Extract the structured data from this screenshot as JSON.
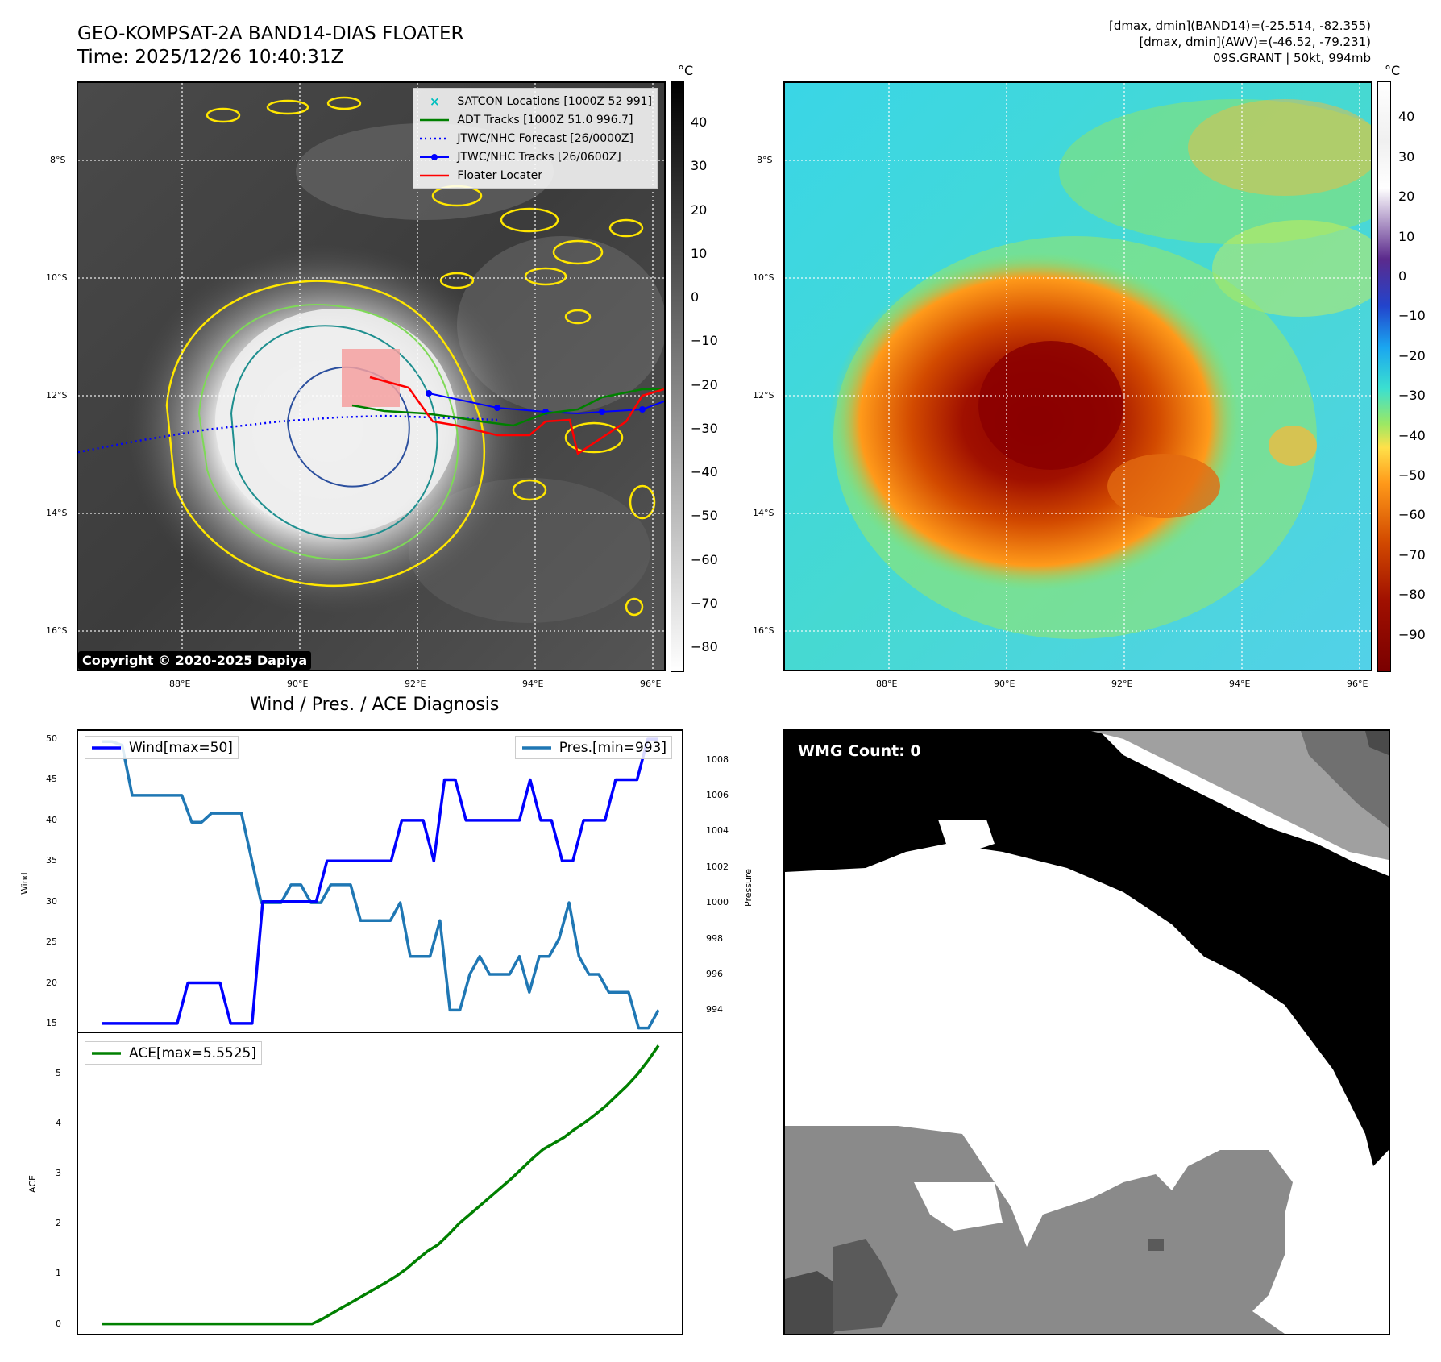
{
  "header": {
    "title_line1": "GEO-KOMPSAT-2A BAND14-DIAS FLOATER",
    "title_line2": "Time: 2025/12/26 10:40:31Z",
    "info_line1": "[dmax, dmin](BAND14)=(-25.514, -82.355)",
    "info_line2": "[dmax, dmin](AWV)=(-46.52, -79.231)",
    "info_line3": "09S.GRANT | 50kt, 994mb"
  },
  "map": {
    "lat_labels": [
      "8°S",
      "10°S",
      "12°S",
      "14°S",
      "16°S"
    ],
    "lon_labels": [
      "88°E",
      "90°E",
      "92°E",
      "94°E",
      "96°E"
    ],
    "copyright": "Copyright © 2020-2025 Dapiya",
    "legend": [
      {
        "label": "SATCON Locations [1000Z 52 991]",
        "color": "#00bfbf",
        "style": "x"
      },
      {
        "label": "ADT Tracks [1000Z 51.0 996.7]",
        "color": "#008000",
        "style": "line"
      },
      {
        "label": "JTWC/NHC Forecast [26/0000Z]",
        "color": "#0000ff",
        "style": "dotted"
      },
      {
        "label": "JTWC/NHC Tracks [26/0600Z]",
        "color": "#0000ff",
        "style": "line-dot"
      },
      {
        "label": "Floater Locater",
        "color": "#ff0000",
        "style": "line"
      }
    ]
  },
  "colorbar_left": {
    "unit": "°C",
    "ticks": [
      "40",
      "30",
      "20",
      "10",
      "0",
      "−10",
      "−20",
      "−30",
      "−40",
      "−50",
      "−60",
      "−70",
      "−80"
    ]
  },
  "colorbar_right": {
    "unit": "°C",
    "ticks": [
      "40",
      "30",
      "20",
      "10",
      "0",
      "−10",
      "−20",
      "−30",
      "−40",
      "−50",
      "−60",
      "−70",
      "−80",
      "−90"
    ]
  },
  "diag": {
    "title": "Wind / Pres. / ACE Diagnosis",
    "wind_ylabel": "Wind",
    "pres_ylabel": "Pressure",
    "ace_ylabel": "ACE",
    "wind_legend": "Wind[max=50]",
    "pres_legend": "Pres.[min=993]",
    "ace_legend": "ACE[max=5.5525]",
    "wind_ticks": [
      "50",
      "45",
      "40",
      "35",
      "30",
      "25",
      "20",
      "15"
    ],
    "pres_ticks": [
      "1008",
      "1006",
      "1004",
      "1002",
      "1000",
      "998",
      "996",
      "994"
    ],
    "ace_ticks": [
      "5",
      "4",
      "3",
      "2",
      "1",
      "0"
    ],
    "wmg_label": "WMG Count: 0"
  },
  "chart_data": [
    {
      "type": "line",
      "title": "Wind / Pres. / ACE Diagnosis",
      "ylabel": "Wind",
      "ylim": [
        14,
        51
      ],
      "series": [
        {
          "name": "Wind[max=50]",
          "color": "#0000ff",
          "values": [
            15,
            15,
            15,
            15,
            15,
            15,
            15,
            15,
            20,
            20,
            20,
            20,
            15,
            15,
            15,
            30,
            30,
            30,
            30,
            30,
            30,
            35,
            35,
            35,
            35,
            35,
            35,
            35,
            40,
            40,
            40,
            35,
            45,
            45,
            40,
            40,
            40,
            40,
            40,
            40,
            45,
            40,
            40,
            35,
            35,
            40,
            40,
            40,
            45,
            45,
            45,
            50,
            50
          ]
        }
      ]
    },
    {
      "type": "line",
      "ylabel": "Pressure",
      "ylim": [
        992.8,
        1009.6
      ],
      "series": [
        {
          "name": "Pres.[min=993]",
          "color": "#1f77b4",
          "values": [
            1009,
            1009,
            1008.8,
            1006,
            1006,
            1006,
            1006,
            1006,
            1006,
            1004.5,
            1004.5,
            1005,
            1005,
            1005,
            1005,
            1002.5,
            1000,
            1000,
            1000,
            1001,
            1001,
            1000,
            1000,
            1001,
            1001,
            1001,
            999,
            999,
            999,
            999,
            1000,
            997,
            997,
            997,
            999,
            994,
            994,
            996,
            997,
            996,
            996,
            996,
            997,
            995,
            997,
            997,
            998,
            1000,
            997,
            996,
            996,
            995,
            995,
            995,
            993,
            993,
            994
          ]
        }
      ]
    },
    {
      "type": "line",
      "ylabel": "ACE",
      "ylim": [
        -0.2,
        5.8
      ],
      "series": [
        {
          "name": "ACE[max=5.5525]",
          "color": "#008000",
          "values": [
            0,
            0,
            0,
            0,
            0,
            0,
            0,
            0,
            0,
            0,
            0,
            0,
            0,
            0,
            0,
            0,
            0,
            0,
            0,
            0,
            0,
            0.1,
            0.22,
            0.34,
            0.46,
            0.58,
            0.7,
            0.82,
            0.95,
            1.1,
            1.28,
            1.45,
            1.58,
            1.78,
            2.0,
            2.18,
            2.36,
            2.54,
            2.72,
            2.9,
            3.1,
            3.3,
            3.48,
            3.6,
            3.72,
            3.88,
            4.02,
            4.18,
            4.35,
            4.55,
            4.75,
            4.98,
            5.25,
            5.5525
          ]
        }
      ]
    }
  ]
}
